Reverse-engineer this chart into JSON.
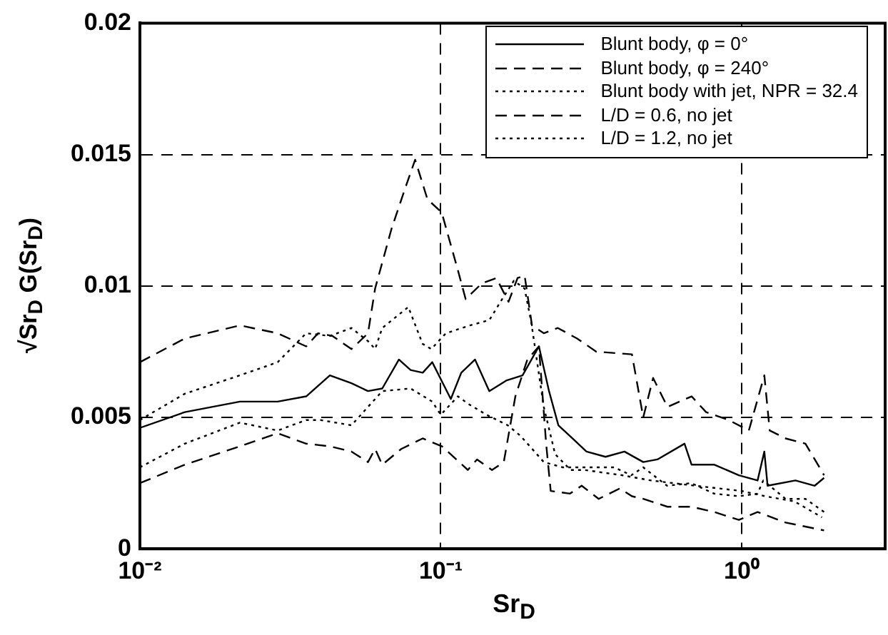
{
  "chart_data": {
    "type": "line",
    "xlabel": "Sr$_{D}$",
    "ylabel": "√Sr$_{D}$ G(Sr$_{D}$)",
    "log": "x",
    "grid": true,
    "legend": "top right",
    "marker": "none",
    "xlim": [
      0.01,
      3
    ],
    "xticks": [
      {
        "value": 0.01,
        "label": "10⁻²"
      },
      {
        "value": 0.1,
        "label": "10⁻¹"
      },
      {
        "value": 1,
        "label": "10⁰"
      }
    ],
    "ylim": [
      0,
      0.02
    ],
    "yticks": [
      0,
      0.005,
      0.01,
      0.015,
      0.02
    ],
    "series": [
      {
        "name": "Blunt body, φ = 0°",
        "color": "#000000",
        "line_style": "solid",
        "x": [
          0.01,
          0.0141,
          0.0215,
          0.0287,
          0.0357,
          0.0428,
          0.0505,
          0.0573,
          0.0639,
          0.0726,
          0.0794,
          0.0871,
          0.0937,
          0.108,
          0.117,
          0.13,
          0.145,
          0.165,
          0.187,
          0.212,
          0.229,
          0.246,
          0.274,
          0.305,
          0.353,
          0.408,
          0.471,
          0.525,
          0.646,
          0.682,
          0.812,
          0.979,
          1.13,
          1.19,
          1.22,
          1.51,
          1.75,
          1.88
        ],
        "values": [
          0.0046,
          0.0052,
          0.0056,
          0.0056,
          0.0058,
          0.0066,
          0.0063,
          0.006,
          0.0061,
          0.0072,
          0.0068,
          0.0067,
          0.0071,
          0.0057,
          0.0067,
          0.0072,
          0.006,
          0.0064,
          0.0066,
          0.0077,
          0.006,
          0.0047,
          0.0042,
          0.0037,
          0.0035,
          0.0037,
          0.0033,
          0.0034,
          0.004,
          0.0032,
          0.0032,
          0.0028,
          0.0026,
          0.0037,
          0.0024,
          0.0026,
          0.0024,
          0.0027
        ]
      },
      {
        "name": "Blunt body, φ = 240°",
        "color": "#000000",
        "line_style": "dashed",
        "x": [
          0.01,
          0.0141,
          0.0215,
          0.0287,
          0.0357,
          0.0391,
          0.0436,
          0.0505,
          0.0573,
          0.0605,
          0.0687,
          0.0766,
          0.0822,
          0.0903,
          0.1007,
          0.114,
          0.121,
          0.137,
          0.153,
          0.168,
          0.18,
          0.19,
          0.201,
          0.22,
          0.245,
          0.284,
          0.329,
          0.432,
          0.471,
          0.508,
          0.567,
          0.682,
          0.762,
          0.906,
          1.057,
          1.19,
          1.24,
          1.4,
          1.63,
          1.88
        ],
        "values": [
          0.0071,
          0.008,
          0.0085,
          0.0082,
          0.0077,
          0.0082,
          0.0081,
          0.0076,
          0.0082,
          0.0099,
          0.0122,
          0.0138,
          0.0148,
          0.0133,
          0.0128,
          0.0106,
          0.0095,
          0.0101,
          0.0103,
          0.0094,
          0.0103,
          0.0104,
          0.0085,
          0.0082,
          0.0084,
          0.008,
          0.0075,
          0.0074,
          0.005,
          0.0065,
          0.0054,
          0.0058,
          0.0052,
          0.0049,
          0.0045,
          0.0066,
          0.0045,
          0.0042,
          0.004,
          0.0028
        ]
      },
      {
        "name": "Blunt body with jet, NPR = 32.4",
        "color": "#000000",
        "line_style": "dotted",
        "x": [
          0.01,
          0.0141,
          0.0215,
          0.0287,
          0.0357,
          0.0428,
          0.0505,
          0.0573,
          0.0605,
          0.0639,
          0.078,
          0.087,
          0.093,
          0.104,
          0.125,
          0.145,
          0.16,
          0.175,
          0.19,
          0.2,
          0.22,
          0.24,
          0.27,
          0.3,
          0.4,
          0.5,
          0.7,
          1.0,
          1.2,
          1.5,
          1.85
        ],
        "values": [
          0.0049,
          0.0059,
          0.0066,
          0.0071,
          0.0082,
          0.0081,
          0.0084,
          0.0079,
          0.0076,
          0.0084,
          0.0092,
          0.0078,
          0.0076,
          0.0082,
          0.0085,
          0.0087,
          0.0095,
          0.0102,
          0.0099,
          0.0086,
          0.0054,
          0.0036,
          0.003,
          0.003,
          0.0028,
          0.0026,
          0.0024,
          0.0022,
          0.002,
          0.0018,
          0.0012
        ]
      },
      {
        "name": "L/D = 0.6, no jet",
        "color": "#000000",
        "line_style": "dashed",
        "x": [
          0.01,
          0.0141,
          0.0215,
          0.0287,
          0.0357,
          0.0428,
          0.0505,
          0.0573,
          0.0605,
          0.0639,
          0.0739,
          0.0871,
          0.101,
          0.123,
          0.132,
          0.148,
          0.162,
          0.177,
          0.194,
          0.212,
          0.224,
          0.232,
          0.269,
          0.294,
          0.335,
          0.394,
          0.432,
          0.471,
          0.567,
          0.682,
          0.812,
          0.979,
          1.13,
          1.4,
          1.88
        ],
        "values": [
          0.0025,
          0.0032,
          0.0039,
          0.0044,
          0.004,
          0.0039,
          0.0037,
          0.0033,
          0.0038,
          0.0032,
          0.0038,
          0.0042,
          0.0039,
          0.003,
          0.0034,
          0.003,
          0.0033,
          0.0058,
          0.0072,
          0.0077,
          0.004,
          0.0022,
          0.0021,
          0.0024,
          0.0019,
          0.0023,
          0.002,
          0.0019,
          0.0016,
          0.0016,
          0.0014,
          0.0011,
          0.0014,
          0.001,
          0.0007
        ]
      },
      {
        "name": "L/D = 1.2, no jet",
        "color": "#000000",
        "line_style": "dotted",
        "x": [
          0.01,
          0.0141,
          0.0215,
          0.0287,
          0.0357,
          0.0398,
          0.0505,
          0.0573,
          0.0639,
          0.0794,
          0.0937,
          0.1,
          0.114,
          0.124,
          0.142,
          0.167,
          0.184,
          0.205,
          0.22,
          0.254,
          0.305,
          0.377,
          0.43,
          0.471,
          0.565,
          0.68,
          0.81,
          0.98,
          1.13,
          1.18,
          1.4,
          1.63,
          1.88
        ],
        "values": [
          0.0031,
          0.004,
          0.0048,
          0.0045,
          0.0049,
          0.0049,
          0.0047,
          0.0054,
          0.006,
          0.0061,
          0.0056,
          0.0051,
          0.0058,
          0.0055,
          0.0051,
          0.0047,
          0.0043,
          0.0037,
          0.0033,
          0.0031,
          0.0031,
          0.0031,
          0.0028,
          0.0031,
          0.0024,
          0.0025,
          0.0021,
          0.002,
          0.0021,
          0.0026,
          0.0019,
          0.0019,
          0.0014
        ]
      }
    ]
  }
}
